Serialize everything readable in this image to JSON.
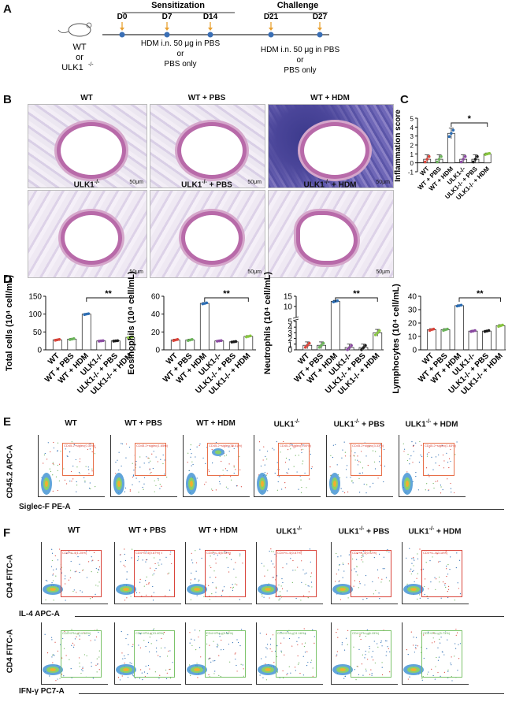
{
  "panels": {
    "A": "A",
    "B": "B",
    "C": "C",
    "D": "D",
    "E": "E",
    "F": "F"
  },
  "panelA": {
    "sensitization": "Sensitization",
    "challenge": "Challenge",
    "mouse_line1": "WT",
    "mouse_line2": "or",
    "mouse_line3": "ULK1",
    "mouse_sup": "-/-",
    "days": [
      "D0",
      "D7",
      "D14",
      "D21",
      "D27"
    ],
    "treat1": [
      "HDM i.n. 50 μg in PBS",
      "or",
      "PBS only"
    ],
    "treat2": [
      "HDM i.n. 50 μg in PBS",
      "or",
      "PBS only"
    ]
  },
  "panelB": {
    "titles": [
      "WT",
      "WT + PBS",
      "WT + HDM",
      "ULK1",
      "ULK1",
      "ULK1"
    ],
    "title_suffix": [
      "",
      "",
      "",
      " ",
      " + PBS",
      " + HDM"
    ],
    "sup": "-/-",
    "scale": "50μm"
  },
  "group_colors": [
    "#d9443a",
    "#6bb35a",
    "#2c6db3",
    "#8a4aa0",
    "#1a1a1a",
    "#88c540"
  ],
  "groups": [
    "WT",
    "WT + PBS",
    "WT + HDM",
    "ULK1-/-",
    "ULK1-/- + PBS",
    "ULK1-/- + HDM"
  ],
  "chart_data": [
    {
      "type": "bar",
      "ylabel": "Inflammation score",
      "categories": [
        "WT",
        "WT + PBS",
        "WT + HDM",
        "ULK1-/-",
        "ULK1-/- + PBS",
        "ULK1-/- + HDM"
      ],
      "values": [
        0.4,
        0.4,
        3.3,
        0.4,
        0.4,
        1.0
      ],
      "errors": [
        0.5,
        0.5,
        0.6,
        0.5,
        0.5,
        0.1
      ],
      "ylim": [
        -1,
        5
      ],
      "yticks": [
        -1,
        0,
        1,
        2,
        3,
        4,
        5
      ],
      "significance": "*"
    },
    {
      "type": "bar",
      "ylabel": "Total cells (10⁴ cell/mL)",
      "categories": [
        "WT",
        "WT + PBS",
        "WT + HDM",
        "ULK1-/-",
        "ULK1-/- + PBS",
        "ULK1-/- + HDM"
      ],
      "values": [
        28,
        30,
        100,
        25,
        25,
        35
      ],
      "errors": [
        2,
        2,
        2,
        1,
        1,
        2
      ],
      "ylim": [
        0,
        150
      ],
      "yticks": [
        0,
        50,
        100,
        150
      ],
      "significance": "**"
    },
    {
      "type": "bar",
      "ylabel": "Eosinophils (10⁴ cell/mL)",
      "categories": [
        "WT",
        "WT + PBS",
        "WT + HDM",
        "ULK1-/-",
        "ULK1-/- + PBS",
        "ULK1-/- + HDM"
      ],
      "values": [
        11,
        11,
        52,
        10,
        9,
        15
      ],
      "errors": [
        1,
        1,
        1,
        0.5,
        0.5,
        1
      ],
      "ylim": [
        0,
        60
      ],
      "yticks": [
        0,
        20,
        40,
        60
      ],
      "significance": "**"
    },
    {
      "type": "bar",
      "ylabel": "Neutrophils (10⁴ cell/mL)",
      "categories": [
        "WT",
        "WT + PBS",
        "WT + HDM",
        "ULK1-/-",
        "ULK1-/- + PBS",
        "ULK1-/- + HDM"
      ],
      "values": [
        0.8,
        0.8,
        12.5,
        0.4,
        0.4,
        3.0
      ],
      "errors": [
        0.6,
        0.6,
        0.5,
        0.6,
        0.6,
        0.6
      ],
      "ylim": [
        0,
        15
      ],
      "yticks": [
        0,
        1,
        2,
        3,
        4,
        5,
        10,
        15
      ],
      "ytick_labels": [
        "0",
        "1",
        "2",
        "3",
        "4",
        "5",
        "10",
        "15"
      ],
      "broken_axis": true,
      "significance": "**"
    },
    {
      "type": "bar",
      "ylabel": "Lymphocytes (10⁴ cell/mL)",
      "categories": [
        "WT",
        "WT + PBS",
        "WT + HDM",
        "ULK1-/-",
        "ULK1-/- + PBS",
        "ULK1-/- + HDM"
      ],
      "values": [
        15,
        15,
        33,
        14,
        14,
        18
      ],
      "errors": [
        0.8,
        0.8,
        0.6,
        0.6,
        0.6,
        0.8
      ],
      "ylim": [
        0,
        40
      ],
      "yticks": [
        0,
        10,
        20,
        30,
        40
      ],
      "significance": "**"
    }
  ],
  "panelE": {
    "titles": [
      "WT",
      "WT + PBS",
      "WT + HDM",
      "ULK1",
      "ULK1",
      "ULK1"
    ],
    "title_suffix": [
      "",
      "",
      "",
      " ",
      " + PBS",
      " + HDM"
    ],
    "ylabel": "CD45.2 APC-A",
    "xlabel": "Siglec-F PE-A",
    "gates": [
      "CD45.2+siglec(0.34%)",
      "CD45.2+siglec(1.65%)",
      "CD45.2+siglec(30.41%)",
      "CD45.2+siglec(0.00%)",
      "CD45.2+siglec(3.33%)",
      "CD45.2+siglec(1.63%)"
    ]
  },
  "panelF": {
    "titles": [
      "WT",
      "WT + PBS",
      "WT + HDM",
      "ULK1",
      "ULK1",
      "ULK1"
    ],
    "title_suffix": [
      "",
      "",
      "",
      " ",
      " + PBS",
      " + HDM"
    ],
    "ylabel": "CD4 FITC-A",
    "xlabel1": "IL-4 APC-A",
    "xlabel2": "IFN-γ PC7-A",
    "gates_il4": [
      "CD4+IL-4(1.25%)",
      "CD4+IL-4(0.87%)",
      "CD4+IL-4(6.18%)",
      "CD4+IL-4(0.87%)",
      "CD4+IL-4(0.92%)",
      "CD4+IL-4(3.18%)"
    ],
    "gates_ifn": [
      "CD4+IFN-γ(14.16%)",
      "CD4+IFN-γ(13.40%)",
      "CD4+IFN-γ(8.03%)",
      "CD4+IFN-γ(11.16%)",
      "CD4+IFN-γ(6.15%)",
      "CD4+IFN-γ(5.73%)"
    ]
  }
}
